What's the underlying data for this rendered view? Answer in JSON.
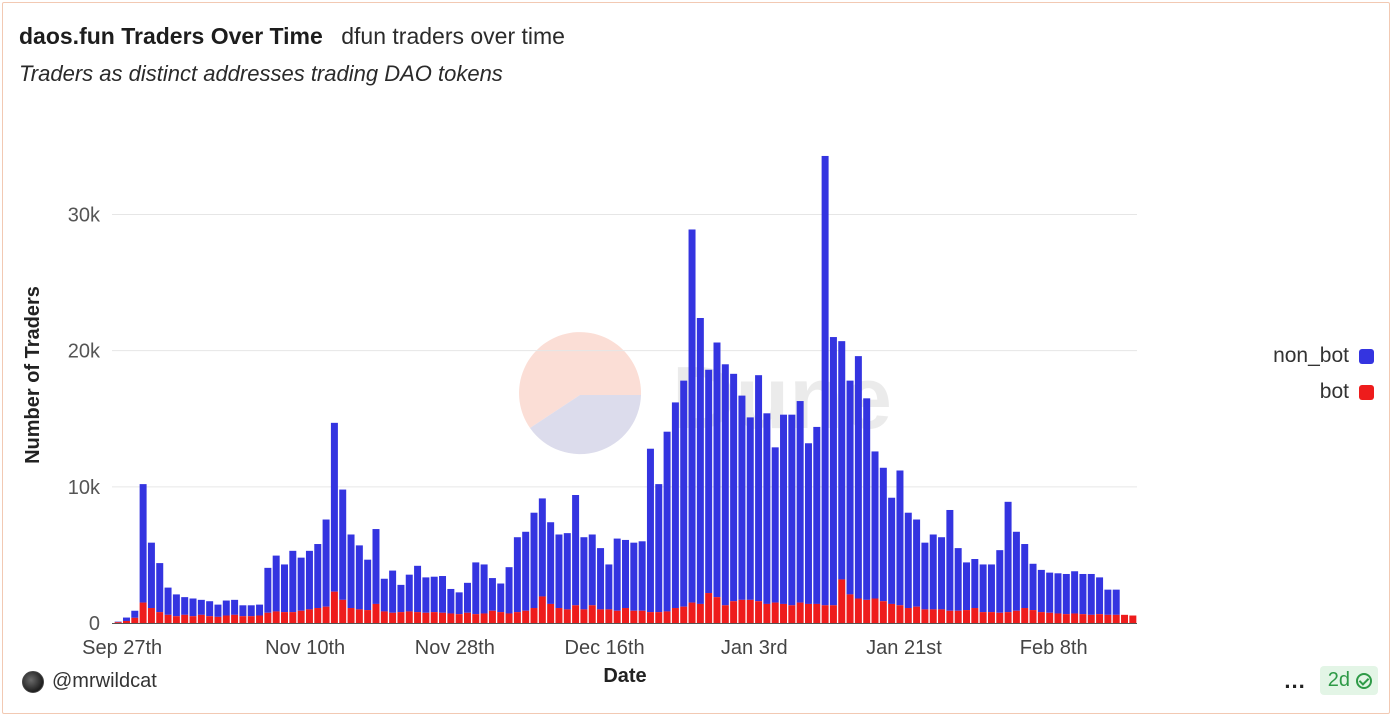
{
  "header": {
    "title": "daos.fun Traders Over Time",
    "subtitle": "dfun traders over time",
    "description": "Traders as distinct addresses trading DAO tokens"
  },
  "footer": {
    "author": "@mrwildcat",
    "more_label": "...",
    "age_label": "2d"
  },
  "colors": {
    "non_bot": "#3434e0",
    "bot": "#ee1c1c",
    "grid": "#e6e6e6",
    "accent": "#2e9a47"
  },
  "chart_data": {
    "type": "bar",
    "stacked": true,
    "title": "daos.fun Traders Over Time",
    "xlabel": "Date",
    "ylabel": "Number of Traders",
    "ylim": [
      0,
      36500
    ],
    "y_ticks": [
      0,
      10000,
      20000,
      30000
    ],
    "y_tick_labels": [
      "0",
      "10k",
      "20k",
      "30k"
    ],
    "x_tick_labels": [
      {
        "label": "Sep 27th",
        "index": 0
      },
      {
        "label": "Nov 10th",
        "index": 22
      },
      {
        "label": "Nov 28th",
        "index": 40
      },
      {
        "label": "Dec 16th",
        "index": 58
      },
      {
        "label": "Jan 3rd",
        "index": 76
      },
      {
        "label": "Jan 21st",
        "index": 94
      },
      {
        "label": "Feb 8th",
        "index": 112
      }
    ],
    "legend": {
      "placement": "right",
      "entries": [
        "non_bot",
        "bot"
      ]
    },
    "watermark": "Dune",
    "x_start_label": "Sep 27th",
    "series": [
      {
        "name": "bot",
        "values": [
          60,
          150,
          380,
          1500,
          1100,
          800,
          600,
          500,
          600,
          500,
          600,
          500,
          450,
          550,
          600,
          500,
          500,
          550,
          750,
          850,
          800,
          800,
          900,
          1000,
          1100,
          1200,
          2300,
          1700,
          1100,
          1000,
          950,
          1400,
          850,
          750,
          800,
          850,
          800,
          750,
          800,
          750,
          700,
          650,
          750,
          650,
          700,
          900,
          800,
          700,
          800,
          900,
          1100,
          1950,
          1400,
          1100,
          1000,
          1300,
          1000,
          1300,
          1000,
          1000,
          900,
          1100,
          900,
          900,
          800,
          800,
          850,
          1100,
          1200,
          1500,
          1400,
          2200,
          1900,
          1300,
          1600,
          1700,
          1700,
          1600,
          1400,
          1500,
          1400,
          1300,
          1500,
          1400,
          1400,
          1300,
          1300,
          3200,
          2100,
          1800,
          1700,
          1800,
          1600,
          1400,
          1300,
          1100,
          1200,
          1000,
          1000,
          1000,
          900,
          900,
          950,
          1100,
          800,
          800,
          750,
          800,
          900,
          1100,
          950,
          800,
          750,
          700,
          650,
          700,
          650,
          600,
          650,
          600,
          600,
          600,
          550
        ]
      },
      {
        "name": "non_bot",
        "values": [
          40,
          250,
          520,
          8700,
          4800,
          3600,
          2000,
          1600,
          1300,
          1300,
          1100,
          1100,
          900,
          1100,
          1100,
          800,
          800,
          800,
          3300,
          4100,
          3500,
          4500,
          3900,
          4300,
          4700,
          6400,
          12400,
          8100,
          5400,
          4700,
          3700,
          5500,
          2400,
          3100,
          2000,
          2700,
          3400,
          2600,
          2600,
          2700,
          1800,
          1600,
          2200,
          3800,
          3600,
          2400,
          2100,
          3400,
          5500,
          5800,
          7000,
          7200,
          6000,
          5400,
          5600,
          8100,
          5300,
          5200,
          4500,
          3300,
          5300,
          5000,
          5000,
          5100,
          12000,
          9400,
          13200,
          15100,
          16600,
          27400,
          21000,
          16400,
          18700,
          17700,
          16700,
          15000,
          13400,
          16600,
          14000,
          11400,
          13900,
          14000,
          14800,
          11800,
          13000,
          33000,
          19700,
          17500,
          15700,
          17800,
          14800,
          10800,
          9800,
          7800,
          9900,
          7000,
          6400,
          4900,
          5500,
          5300,
          7400,
          4600,
          3500,
          3600,
          3500,
          3500,
          4600,
          8100,
          5800,
          4700,
          3400,
          3100,
          2950,
          2950,
          2950,
          3100,
          2950,
          3000,
          2700,
          1850,
          1850
        ]
      }
    ]
  }
}
